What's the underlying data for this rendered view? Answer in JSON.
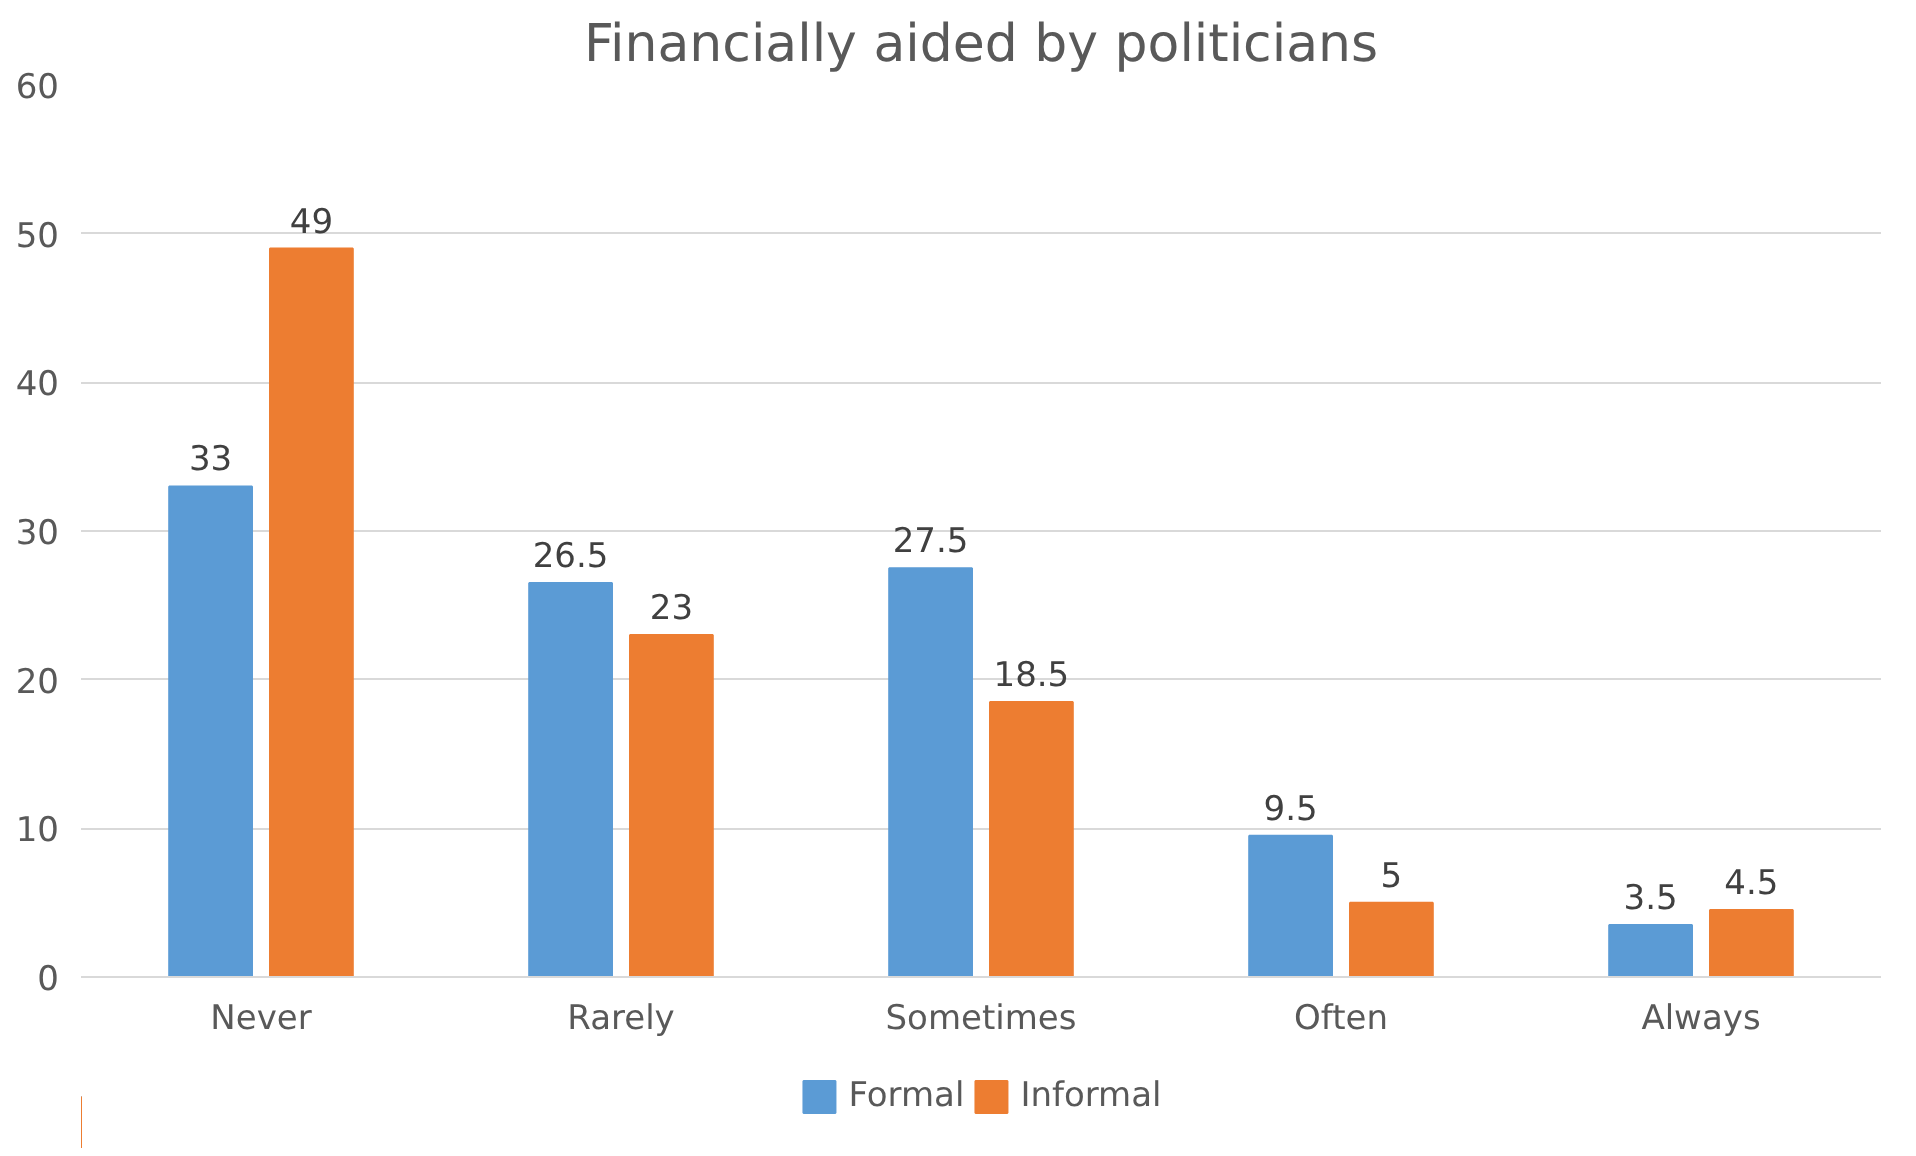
{
  "chart_data": {
    "type": "bar",
    "title": "Financially aided by politicians",
    "categories": [
      "Never",
      "Rarely",
      "Sometimes",
      "Often",
      "Always"
    ],
    "series": [
      {
        "name": "Formal",
        "color": "#5b9bd5",
        "values": [
          33,
          26.5,
          27.5,
          9.5,
          3.5
        ]
      },
      {
        "name": "Informal",
        "color": "#ed7d31",
        "values": [
          49,
          23,
          18.5,
          5,
          4.5
        ]
      }
    ],
    "ylim": [
      0,
      60
    ],
    "yticks": [
      0,
      10,
      20,
      30,
      40,
      50,
      60
    ],
    "grid": "y",
    "legend": "bottom",
    "data_labels": true
  }
}
